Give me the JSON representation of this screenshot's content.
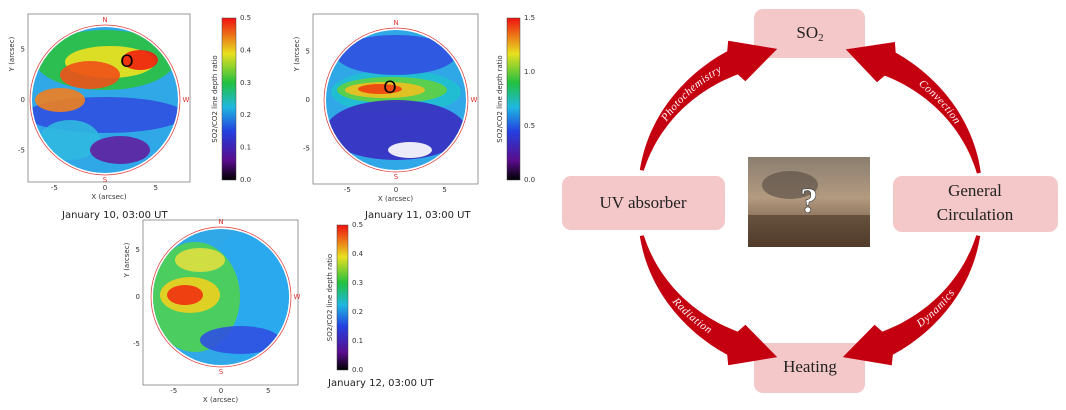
{
  "panels": [
    {
      "caption": "January 10, 03:00 UT",
      "x_label": "X (arcsec)",
      "y_label": "Y (arcsec)",
      "colorbar_label": "SO2/CO2 line depth ratio",
      "colorbar_ticks": [
        "0.5",
        "0.4",
        "0.3",
        "0.2",
        "0.1",
        "0.0"
      ],
      "x_ticks": [
        "-5",
        "0",
        "5"
      ],
      "y_ticks": [
        "5",
        "0",
        "-5"
      ],
      "compass": [
        "N",
        "W",
        "S"
      ],
      "marker": "O"
    },
    {
      "caption": "January 11, 03:00 UT",
      "x_label": "X (arcsec)",
      "y_label": "Y (arcsec)",
      "colorbar_label": "SO2/CO2 line depth ratio",
      "colorbar_ticks": [
        "1.5",
        "1.0",
        "0.5",
        "0.0"
      ],
      "x_ticks": [
        "-5",
        "0",
        "5"
      ],
      "y_ticks": [
        "5",
        "0",
        "-5"
      ],
      "compass": [
        "N",
        "W",
        "S"
      ],
      "marker": "O"
    },
    {
      "caption": "January 12, 03:00 UT",
      "x_label": "X (arcsec)",
      "y_label": "Y (arcsec)",
      "colorbar_label": "SO2/CO2 line depth ratio",
      "colorbar_ticks": [
        "0.5",
        "0.4",
        "0.3",
        "0.2",
        "0.1",
        "0.0"
      ],
      "x_ticks": [
        "-5",
        "0",
        "5"
      ],
      "y_ticks": [
        "5",
        "0",
        "-5"
      ],
      "compass": [
        "N",
        "W",
        "S"
      ]
    }
  ],
  "diagram": {
    "nodes": [
      {
        "label": "SO",
        "subscript": "2"
      },
      {
        "label": "UV absorber"
      },
      {
        "label": "General",
        "label2": "Circulation"
      },
      {
        "label": "Heating"
      }
    ],
    "arrows": [
      "Photochemistry",
      "Convection",
      "Radiation",
      "Dynamics"
    ],
    "center": "?"
  }
}
